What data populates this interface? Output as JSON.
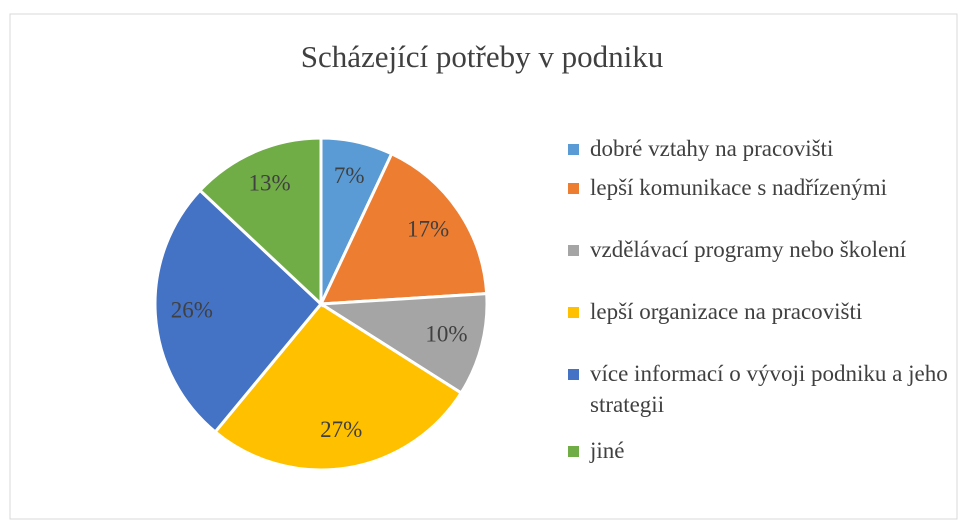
{
  "chart_data": {
    "type": "pie",
    "title": "Scházející potřeby v podniku",
    "categories": [
      "dobré vztahy na pracovišti",
      "lepší komunikace s nadřízenými",
      "vzdělávací programy nebo školení",
      "lepší organizace na pracovišti",
      "více informací o vývoji podniku a jeho strategii",
      "jiné"
    ],
    "values": [
      7,
      17,
      10,
      27,
      26,
      13
    ],
    "value_labels": [
      "7%",
      "17%",
      "10%",
      "27%",
      "26%",
      "13%"
    ],
    "colors": [
      "#5b9bd5",
      "#ed7d31",
      "#a5a5a5",
      "#ffc000",
      "#4472c4",
      "#70ad47"
    ],
    "legend": "right"
  }
}
